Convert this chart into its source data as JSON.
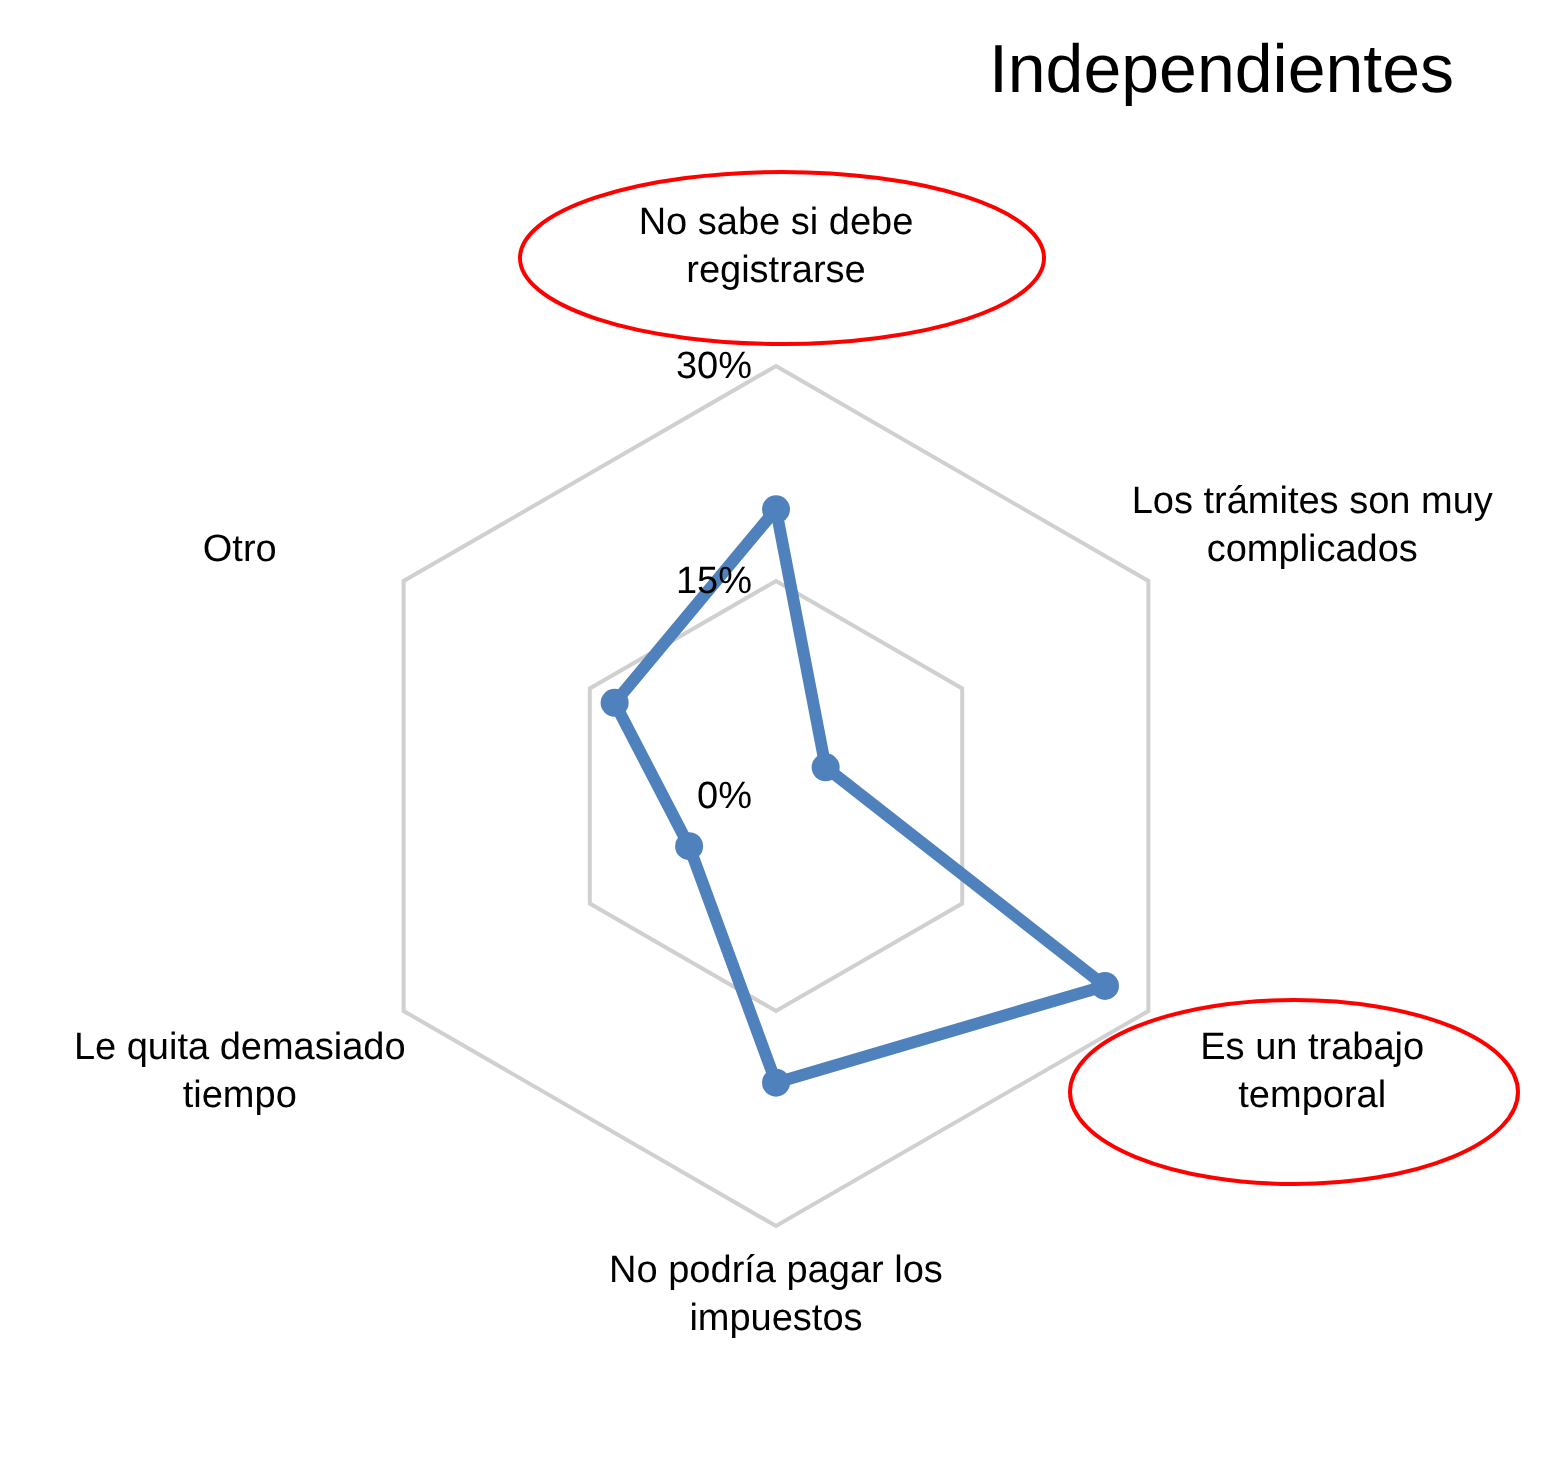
{
  "chart_data": {
    "type": "radar",
    "title": "Independientes",
    "categories": [
      "No sabe si debe registrarse",
      "Los trámites son muy complicados",
      "Es un trabajo temporal",
      "No podría pagar los impuestos",
      "Le quita demasiado tiempo",
      "Otro"
    ],
    "series": [
      {
        "color": "#4f81bd",
        "values": [
          20,
          4,
          26.5,
          20,
          7,
          13
        ]
      }
    ],
    "ylim": [
      0,
      30
    ],
    "yticks": [
      {
        "value": 0,
        "label": "0%"
      },
      {
        "value": 15,
        "label": "15%"
      },
      {
        "value": 30,
        "label": "30%"
      }
    ],
    "grid": true,
    "legend": false,
    "marker": "circle",
    "line_style": "solid"
  }
}
